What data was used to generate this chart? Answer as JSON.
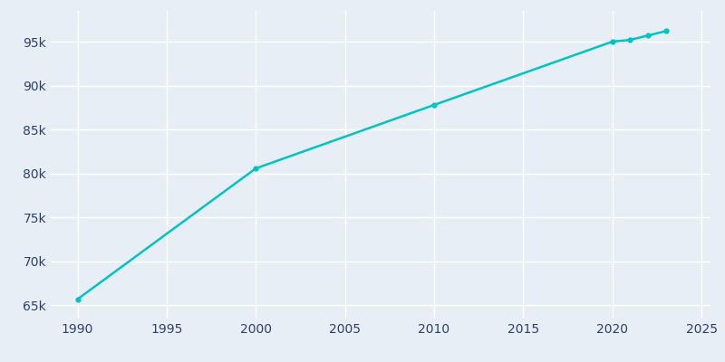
{
  "years": [
    1990,
    2000,
    2010,
    2020,
    2021,
    2022,
    2023
  ],
  "population": [
    65700,
    80580,
    87800,
    95000,
    95200,
    95700,
    96200
  ],
  "line_color": "#00C4C4",
  "marker": "o",
  "marker_size": 3.5,
  "background_color": "#E8EEF5",
  "grid_color": "#FFFFFF",
  "text_color": "#2E3F6F",
  "xlim": [
    1988.5,
    2025.5
  ],
  "ylim": [
    63500,
    98500
  ],
  "xticks": [
    1990,
    1995,
    2000,
    2005,
    2010,
    2015,
    2020,
    2025
  ],
  "yticks": [
    65000,
    70000,
    75000,
    80000,
    85000,
    90000,
    95000
  ],
  "figsize": [
    8.0,
    4.0
  ],
  "dpi": 100
}
